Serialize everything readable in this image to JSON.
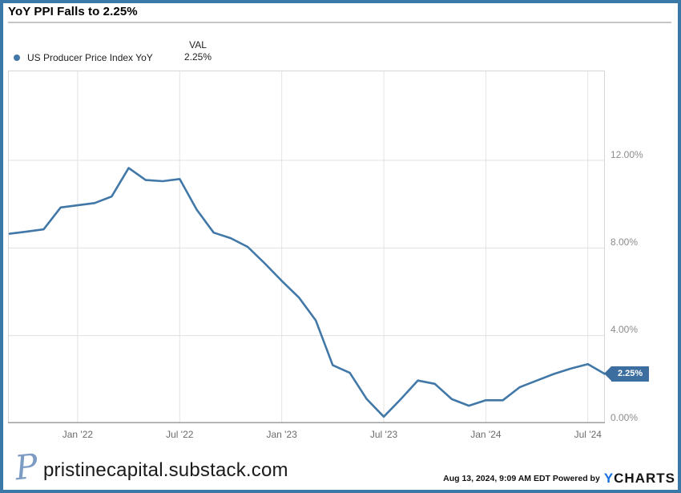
{
  "title": "YoY PPI Falls to 2.25%",
  "legend": {
    "series": "US Producer Price Index YoY",
    "val_header": "VAL",
    "val": "2.25%"
  },
  "chart_data": {
    "type": "line",
    "title": "YoY PPI Falls to 2.25%",
    "series_name": "US Producer Price Index YoY",
    "unit": "percent",
    "categories": [
      "Aug '21",
      "Sep '21",
      "Oct '21",
      "Nov '21",
      "Dec '21",
      "Jan '22",
      "Feb '22",
      "Mar '22",
      "Apr '22",
      "May '22",
      "Jun '22",
      "Jul '22",
      "Aug '22",
      "Sep '22",
      "Oct '22",
      "Nov '22",
      "Dec '22",
      "Jan '23",
      "Feb '23",
      "Mar '23",
      "Apr '23",
      "May '23",
      "Jun '23",
      "Jul '23",
      "Aug '23",
      "Sep '23",
      "Oct '23",
      "Nov '23",
      "Dec '23",
      "Jan '24",
      "Feb '24",
      "Mar '24",
      "Apr '24",
      "May '24",
      "Jun '24",
      "Jul '24"
    ],
    "values": [
      8.65,
      8.75,
      8.85,
      9.85,
      9.95,
      10.05,
      10.35,
      11.65,
      11.1,
      11.05,
      11.15,
      9.75,
      8.7,
      8.45,
      8.05,
      7.3,
      6.5,
      5.75,
      4.7,
      2.65,
      2.3,
      1.1,
      0.3,
      1.1,
      1.95,
      1.8,
      1.1,
      0.8,
      1.05,
      1.05,
      1.65,
      1.95,
      2.25,
      2.5,
      2.7,
      2.25
    ],
    "last_value_label": "2.25%",
    "xticks": [
      {
        "label": "Jan '22",
        "at_index": 4
      },
      {
        "label": "Jul '22",
        "at_index": 10
      },
      {
        "label": "Jan '23",
        "at_index": 16
      },
      {
        "label": "Jul '23",
        "at_index": 22
      },
      {
        "label": "Jan '24",
        "at_index": 28
      },
      {
        "label": "Jul '24",
        "at_index": 34
      }
    ],
    "yticks": [
      {
        "value": 0,
        "label": "0.00%"
      },
      {
        "value": 4,
        "label": "4.00%"
      },
      {
        "value": 8,
        "label": "8.00%"
      },
      {
        "value": 12,
        "label": "12.00%"
      }
    ],
    "ylim": [
      0,
      16.1
    ],
    "grid": true,
    "legend_position": "top-left",
    "line_color": "#4178a8",
    "badge_color": "#3c6f9f",
    "accent_border_color": "#3a78a8"
  },
  "footer": {
    "logo_letter": "P",
    "site": "pristinecapital.substack.com",
    "timestamp": "Aug 13, 2024, 9:09 AM EDT",
    "powered_by": "Powered by",
    "brand": {
      "y": "Y",
      "charts": "CHARTS"
    }
  }
}
